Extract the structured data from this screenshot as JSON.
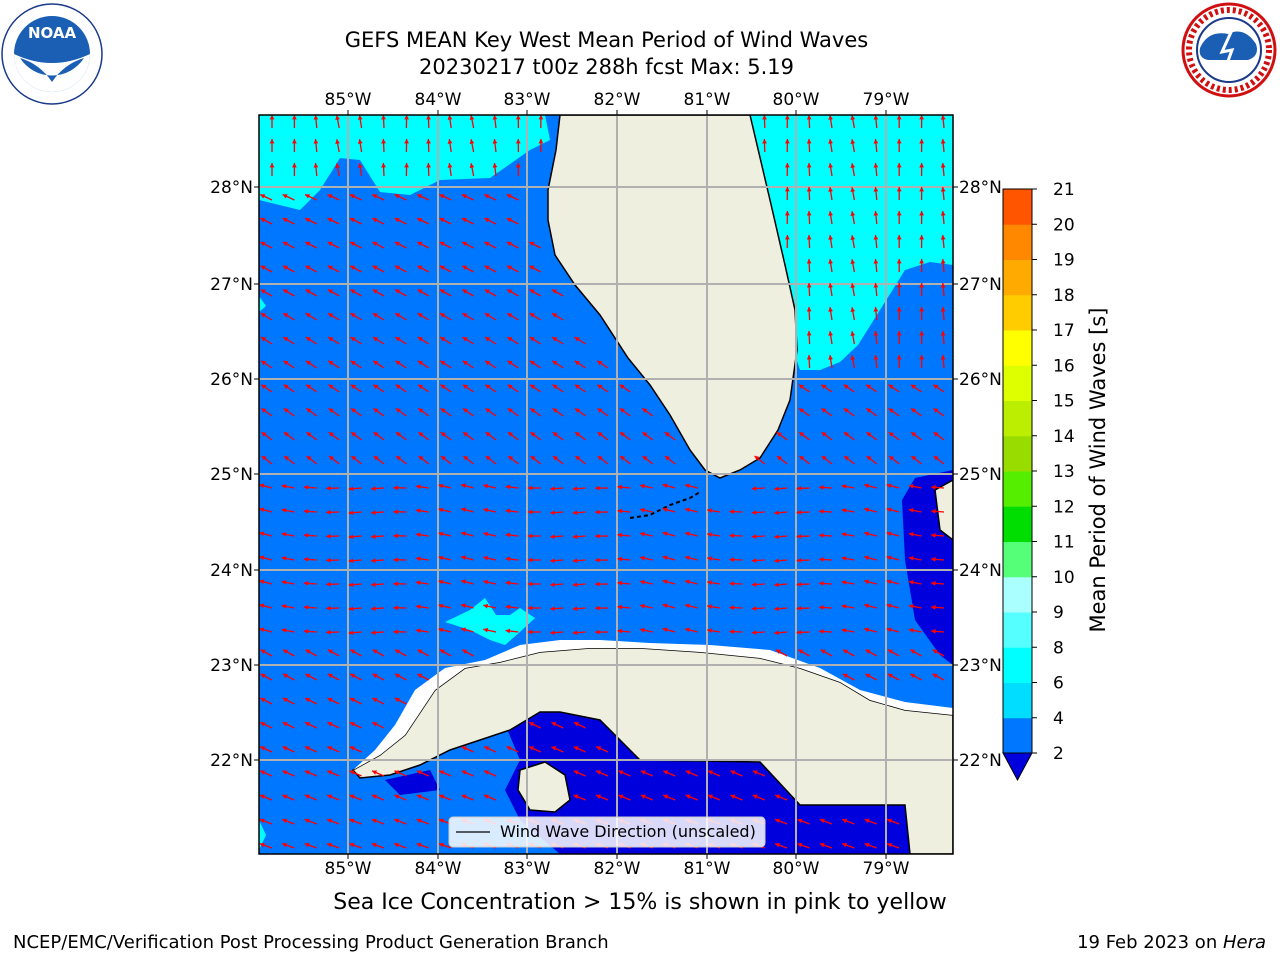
{
  "header": {
    "title_line1": "GEFS MEAN Key West Mean Period of Wind Waves",
    "title_line2": "20230217 t00z 288h fcst   Max: 5.19"
  },
  "logos": {
    "left": {
      "icon": "noaa-logo-icon",
      "text": "NOAA"
    },
    "right": {
      "icon": "national-weather-service-logo-icon"
    }
  },
  "map": {
    "lon_ticks_top": [
      "85°W",
      "84°W",
      "83°W",
      "82°W",
      "81°W",
      "80°W",
      "79°W"
    ],
    "lon_ticks_bottom": [
      "85°W",
      "84°W",
      "83°W",
      "82°W",
      "81°W",
      "80°W",
      "79°W"
    ],
    "lat_ticks_left": [
      "28°N",
      "27°N",
      "26°N",
      "25°N",
      "24°N",
      "23°N",
      "22°N"
    ],
    "lat_ticks_right": [
      "28°N",
      "27°N",
      "26°N",
      "25°N",
      "24°N",
      "23°N",
      "22°N"
    ],
    "legend_label": "Wind Wave Direction (unscaled)",
    "colors": {
      "water_main": "#0077ff",
      "water_light": "#00ffff",
      "water_deep": "#0000dd",
      "land": "#efefdf",
      "arrow": "#ff0000",
      "grid": "#b0b0b0"
    }
  },
  "colorbar": {
    "label": "Mean Period of Wind Waves [s]",
    "ticks": [
      "2",
      "4",
      "6",
      "8",
      "9",
      "10",
      "11",
      "12",
      "13",
      "14",
      "15",
      "16",
      "17",
      "18",
      "19",
      "20",
      "21"
    ],
    "colors": [
      "#0077ff",
      "#00ddff",
      "#00ffff",
      "#55ffff",
      "#aaffff",
      "#55ff77",
      "#00dd00",
      "#55ee00",
      "#99dd00",
      "#bbee00",
      "#ddff00",
      "#ffff00",
      "#ffcc00",
      "#ffaa00",
      "#ff8800",
      "#ff5500",
      "#ff2200",
      "#ff0000"
    ],
    "extend_color": "#0000dd"
  },
  "footer": {
    "ice_note": "Sea Ice Concentration > 15% is shown in pink to yellow",
    "left": "NCEP/EMC/Verification Post Processing Product Generation Branch",
    "date": "19 Feb 2023 on ",
    "machine": "Hera"
  }
}
